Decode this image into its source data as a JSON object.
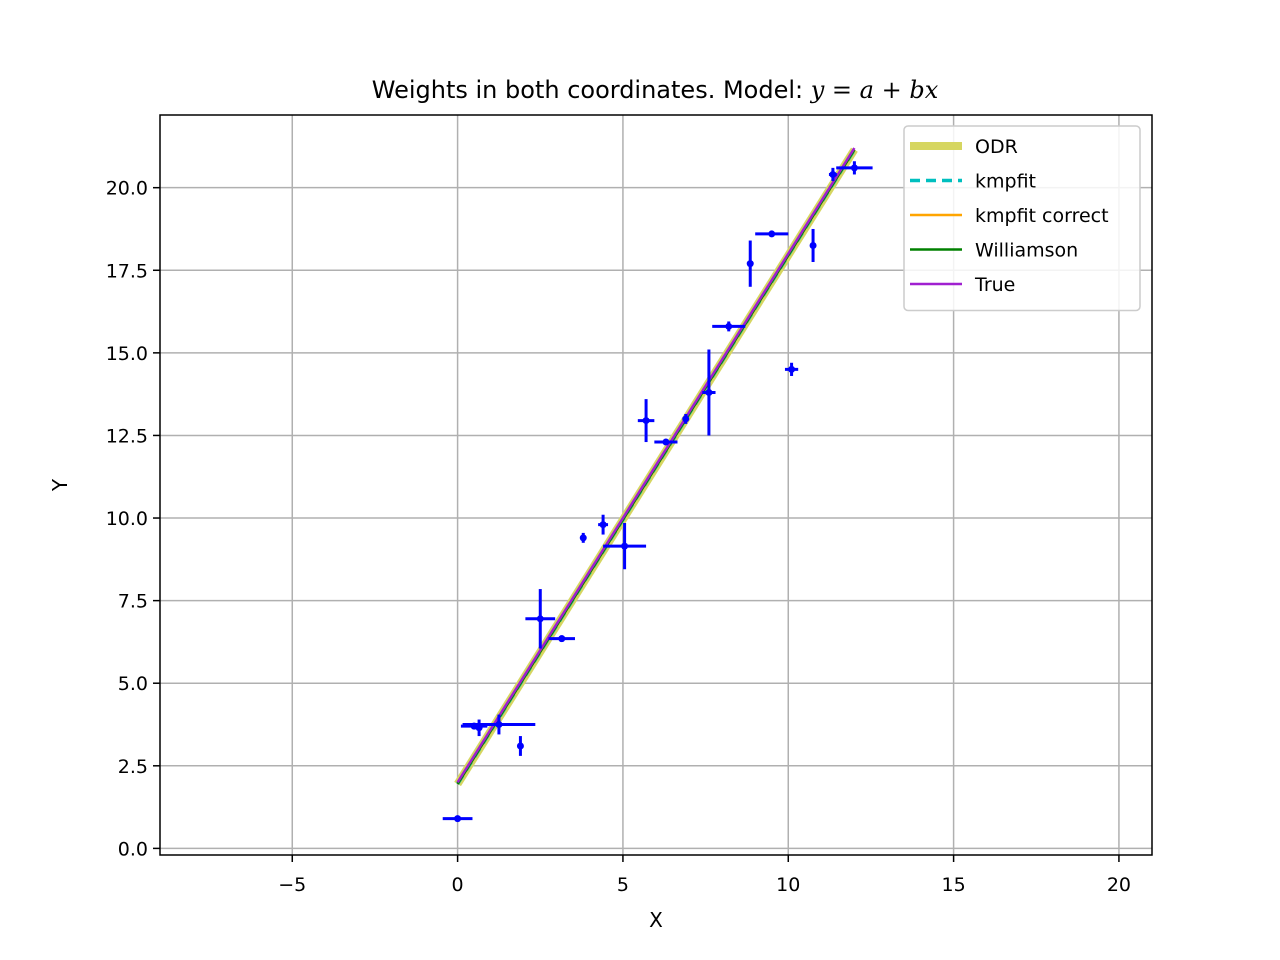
{
  "chart_data": {
    "type": "scatter",
    "title": {
      "prefix": "Weights in both coordinates. Model: ",
      "formula": "y = a + bx"
    },
    "xlabel": "X",
    "ylabel": "Y",
    "xlim": [
      -9,
      21
    ],
    "ylim": [
      -0.2,
      22.2
    ],
    "xticks": [
      -5,
      0,
      5,
      10,
      15,
      20
    ],
    "xtick_labels": [
      "−5",
      "0",
      "5",
      "10",
      "15",
      "20"
    ],
    "yticks": [
      0.0,
      2.5,
      5.0,
      7.5,
      10.0,
      12.5,
      15.0,
      17.5,
      20.0
    ],
    "ytick_labels": [
      "0.0",
      "2.5",
      "5.0",
      "7.5",
      "10.0",
      "12.5",
      "15.0",
      "17.5",
      "20.0"
    ],
    "grid": true,
    "legend_placement": "top-right",
    "points": [
      {
        "x": 0.0,
        "y": 0.9,
        "xerr": 0.45,
        "yerr": 0.06
      },
      {
        "x": 0.5,
        "y": 3.7,
        "xerr": 0.4,
        "yerr": 0.1
      },
      {
        "x": 0.65,
        "y": 3.65,
        "xerr": 0.05,
        "yerr": 0.25
      },
      {
        "x": 1.25,
        "y": 3.75,
        "xerr": 1.1,
        "yerr": 0.3
      },
      {
        "x": 1.9,
        "y": 3.1,
        "xerr": 0.05,
        "yerr": 0.3
      },
      {
        "x": 2.5,
        "y": 6.95,
        "xerr": 0.45,
        "yerr": 0.9
      },
      {
        "x": 3.15,
        "y": 6.35,
        "xerr": 0.4,
        "yerr": 0.1
      },
      {
        "x": 3.8,
        "y": 9.4,
        "xerr": 0.08,
        "yerr": 0.15
      },
      {
        "x": 4.4,
        "y": 9.8,
        "xerr": 0.15,
        "yerr": 0.3
      },
      {
        "x": 5.05,
        "y": 9.15,
        "xerr": 0.65,
        "yerr": 0.7
      },
      {
        "x": 5.7,
        "y": 12.95,
        "xerr": 0.25,
        "yerr": 0.65
      },
      {
        "x": 6.3,
        "y": 12.3,
        "xerr": 0.35,
        "yerr": 0.06
      },
      {
        "x": 6.9,
        "y": 13.0,
        "xerr": 0.1,
        "yerr": 0.15
      },
      {
        "x": 7.6,
        "y": 13.8,
        "xerr": 0.2,
        "yerr": 1.3
      },
      {
        "x": 8.2,
        "y": 15.8,
        "xerr": 0.5,
        "yerr": 0.15
      },
      {
        "x": 8.85,
        "y": 17.7,
        "xerr": 0.05,
        "yerr": 0.7
      },
      {
        "x": 9.5,
        "y": 18.6,
        "xerr": 0.5,
        "yerr": 0.06
      },
      {
        "x": 10.1,
        "y": 14.5,
        "xerr": 0.2,
        "yerr": 0.2
      },
      {
        "x": 10.75,
        "y": 18.25,
        "xerr": 0.05,
        "yerr": 0.5
      },
      {
        "x": 11.35,
        "y": 20.4,
        "xerr": 0.12,
        "yerr": 0.2
      },
      {
        "x": 12.0,
        "y": 20.6,
        "xerr": 0.55,
        "yerr": 0.2
      }
    ],
    "point_color": "#0000ff",
    "fit_x_range": [
      0.0,
      12.0
    ],
    "series": [
      {
        "name": "ODR",
        "a": 1.95,
        "b": 1.6,
        "color": "#d6d660",
        "width": 8,
        "dash": ""
      },
      {
        "name": "kmpfit",
        "a": 1.95,
        "b": 1.6,
        "color": "#00bfbf",
        "width": 3.5,
        "dash": "10,6"
      },
      {
        "name": "kmpfit correct",
        "a": 1.95,
        "b": 1.6,
        "color": "#ffa500",
        "width": 2.5,
        "dash": ""
      },
      {
        "name": "Williamson",
        "a": 1.95,
        "b": 1.6,
        "color": "#008000",
        "width": 2.5,
        "dash": ""
      },
      {
        "name": "True",
        "a": 2.0,
        "b": 1.6,
        "color": "#a020d0",
        "width": 2.5,
        "dash": ""
      }
    ]
  }
}
